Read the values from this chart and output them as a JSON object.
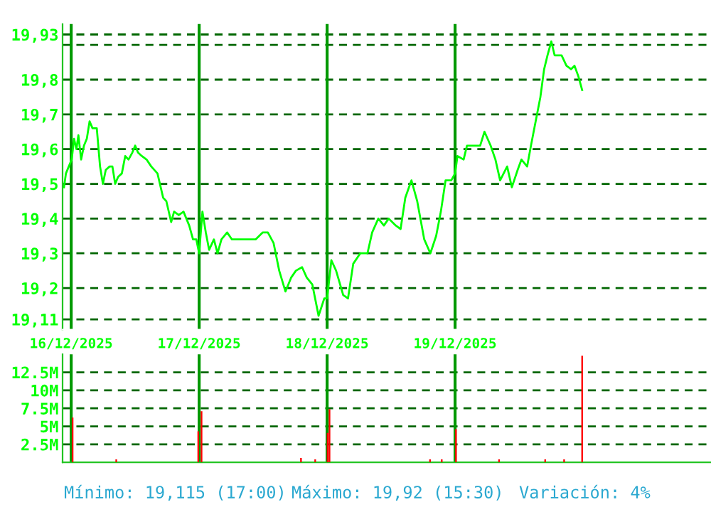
{
  "chart_data": [
    {
      "type": "line",
      "x": [
        "2025-12-15T22:39",
        "2025-12-15T23:01",
        "2025-12-15T23:33",
        "2025-12-16T00:06",
        "2025-12-16T00:32",
        "2025-12-16T00:59",
        "2025-12-16T01:21",
        "2025-12-16T01:52",
        "2025-12-16T02:24",
        "2025-12-16T02:56",
        "2025-12-16T03:27",
        "2025-12-16T04:00",
        "2025-12-16T04:48",
        "2025-12-16T05:25",
        "2025-12-16T05:57",
        "2025-12-16T06:29",
        "2025-12-16T07:12",
        "2025-12-16T07:44",
        "2025-12-16T08:15",
        "2025-12-16T08:48",
        "2025-12-16T09:30",
        "2025-12-16T10:08",
        "2025-12-16T10:45",
        "2025-12-16T11:28",
        "2025-12-16T12:00",
        "2025-12-16T12:32",
        "2025-12-16T13:15",
        "2025-12-16T14:08",
        "2025-12-16T15:01",
        "2025-12-16T16:11",
        "2025-12-16T17:15",
        "2025-12-16T17:51",
        "2025-12-16T18:45",
        "2025-12-16T19:18",
        "2025-12-16T20:11",
        "2025-12-16T21:04",
        "2025-12-16T22:08",
        "2025-12-16T22:51",
        "2025-12-16T23:28",
        "2025-12-17T00:00",
        "2025-12-17T00:37",
        "2025-12-17T01:15",
        "2025-12-17T01:52",
        "2025-12-17T02:46",
        "2025-12-17T03:27",
        "2025-12-17T04:11",
        "2025-12-17T05:15",
        "2025-12-17T06:09",
        "2025-12-17T07:02",
        "2025-12-17T07:55",
        "2025-12-17T08:48",
        "2025-12-17T09:42",
        "2025-12-17T10:35",
        "2025-12-17T11:54",
        "2025-12-17T12:53",
        "2025-12-17T13:57",
        "2025-12-17T15:01",
        "2025-12-17T16:11",
        "2025-12-17T17:15",
        "2025-12-17T18:09",
        "2025-12-17T19:18",
        "2025-12-17T20:11",
        "2025-12-17T21:14",
        "2025-12-17T22:24",
        "2025-12-17T23:28",
        "2025-12-18T00:00",
        "2025-12-18T00:48",
        "2025-12-18T01:41",
        "2025-12-18T03:01",
        "2025-12-18T03:55",
        "2025-12-18T04:54",
        "2025-12-18T06:13",
        "2025-12-18T07:34",
        "2025-12-18T08:27",
        "2025-12-18T09:36",
        "2025-12-18T10:39",
        "2025-12-18T11:33",
        "2025-12-18T12:53",
        "2025-12-18T13:47",
        "2025-12-18T14:40",
        "2025-12-18T15:49",
        "2025-12-18T16:54",
        "2025-12-18T18:13",
        "2025-12-18T19:22",
        "2025-12-18T20:27",
        "2025-12-18T21:20",
        "2025-12-18T22:13",
        "2025-12-18T23:17",
        "2025-12-19T00:00",
        "2025-12-19T00:27",
        "2025-12-19T01:36",
        "2025-12-19T02:14",
        "2025-12-19T03:33",
        "2025-12-19T04:42",
        "2025-12-19T05:31",
        "2025-12-19T06:40",
        "2025-12-19T07:34",
        "2025-12-19T08:27",
        "2025-12-19T09:46",
        "2025-12-19T10:39",
        "2025-12-19T11:44",
        "2025-12-19T12:27",
        "2025-12-19T13:31",
        "2025-12-19T14:14",
        "2025-12-19T15:07",
        "2025-12-19T16:00",
        "2025-12-19T16:42",
        "2025-12-19T17:20",
        "2025-12-19T18:03",
        "2025-12-19T18:40",
        "2025-12-19T19:22",
        "2025-12-19T19:59",
        "2025-12-19T20:53",
        "2025-12-19T21:46",
        "2025-12-19T22:24",
        "2025-12-19T23:07",
        "2025-12-19T23:50"
      ],
      "series": [
        {
          "color": "#00ff00",
          "values": [
            19.49,
            19.53,
            19.55,
            19.57,
            19.63,
            19.6,
            19.64,
            19.57,
            19.61,
            19.63,
            19.68,
            19.66,
            19.66,
            19.55,
            19.5,
            19.54,
            19.55,
            19.55,
            19.5,
            19.52,
            19.53,
            19.58,
            19.57,
            19.59,
            19.61,
            19.59,
            19.58,
            19.57,
            19.55,
            19.53,
            19.46,
            19.45,
            19.39,
            19.42,
            19.41,
            19.42,
            19.38,
            19.34,
            19.34,
            19.3,
            19.42,
            19.36,
            19.31,
            19.34,
            19.3,
            19.34,
            19.36,
            19.34,
            19.34,
            19.34,
            19.34,
            19.34,
            19.34,
            19.36,
            19.36,
            19.33,
            19.25,
            19.19,
            19.23,
            19.25,
            19.26,
            19.23,
            19.21,
            19.12,
            19.17,
            19.17,
            19.28,
            19.25,
            19.18,
            19.17,
            19.27,
            19.3,
            19.3,
            19.36,
            19.4,
            19.38,
            19.4,
            19.38,
            19.37,
            19.46,
            19.51,
            19.45,
            19.34,
            19.3,
            19.35,
            19.42,
            19.51,
            19.51,
            19.53,
            19.58,
            19.57,
            19.61,
            19.61,
            19.61,
            19.65,
            19.61,
            19.57,
            19.51,
            19.55,
            19.49,
            19.54,
            19.57,
            19.55,
            19.61,
            19.68,
            19.75,
            19.83,
            19.87,
            19.91,
            19.87,
            19.87,
            19.87,
            19.84,
            19.83,
            19.84,
            19.81,
            19.77
          ]
        }
      ],
      "xlim": [
        "2025-12-15T22:23",
        "2025-12-21T00:00"
      ],
      "xticks": [
        {
          "value": "2025-12-16",
          "label": "16/12/2025"
        },
        {
          "value": "2025-12-17",
          "label": "17/12/2025"
        },
        {
          "value": "2025-12-18",
          "label": "18/12/2025"
        },
        {
          "value": "2025-12-19",
          "label": "19/12/2025"
        }
      ],
      "ylim": [
        19.08,
        19.96
      ],
      "yticks": [
        {
          "value": 19.11,
          "label": "19,11"
        },
        {
          "value": 19.2,
          "label": "19,2"
        },
        {
          "value": 19.3,
          "label": "19,3"
        },
        {
          "value": 19.4,
          "label": "19,4"
        },
        {
          "value": 19.5,
          "label": "19,5"
        },
        {
          "value": 19.6,
          "label": "19,6"
        },
        {
          "value": 19.7,
          "label": "19,7"
        },
        {
          "value": 19.8,
          "label": "19,8"
        },
        {
          "value": 19.9,
          "label": null
        },
        {
          "value": 19.93,
          "label": "19,93"
        }
      ],
      "grid": true,
      "marker": "none",
      "line_style": "solid",
      "legend": false
    },
    {
      "type": "bar",
      "x": [
        "2025-12-16T00:16",
        "2025-12-16T08:27",
        "2025-12-16T23:50",
        "2025-12-17T00:27",
        "2025-12-17T19:06",
        "2025-12-17T21:46",
        "2025-12-18T00:06",
        "2025-12-18T00:27",
        "2025-12-18T19:18",
        "2025-12-18T21:30",
        "2025-12-19T00:10",
        "2025-12-19T08:15",
        "2025-12-19T16:54",
        "2025-12-19T20:27",
        "2025-12-19T23:50"
      ],
      "series": [
        {
          "color": "#ff0000",
          "values": [
            6.2,
            0.4,
            4.3,
            7.1,
            0.6,
            0.4,
            4.1,
            7.4,
            0.4,
            0.4,
            4.6,
            0.4,
            0.4,
            0.4,
            14.8
          ]
        }
      ],
      "xlim": [
        "2025-12-15T22:23",
        "2025-12-21T00:00"
      ],
      "xticks": [
        {
          "value": "2025-12-16",
          "label": null
        },
        {
          "value": "2025-12-17",
          "label": null
        },
        {
          "value": "2025-12-18",
          "label": null
        },
        {
          "value": "2025-12-19",
          "label": null
        }
      ],
      "ylim": [
        0,
        15
      ],
      "yticks": [
        {
          "value": 2.5,
          "label": "2.5M"
        },
        {
          "value": 5,
          "label": "5M"
        },
        {
          "value": 7.5,
          "label": "7.5M"
        },
        {
          "value": 10,
          "label": "10M"
        },
        {
          "value": 12.5,
          "label": "12.5M"
        }
      ],
      "grid": true,
      "tick_labels": "y",
      "legend": false,
      "annotations": [
        "Mínimo: 19,115 (17:00)",
        "Máximo: 19,92 (15:30)",
        "Variación: 4%"
      ]
    }
  ]
}
